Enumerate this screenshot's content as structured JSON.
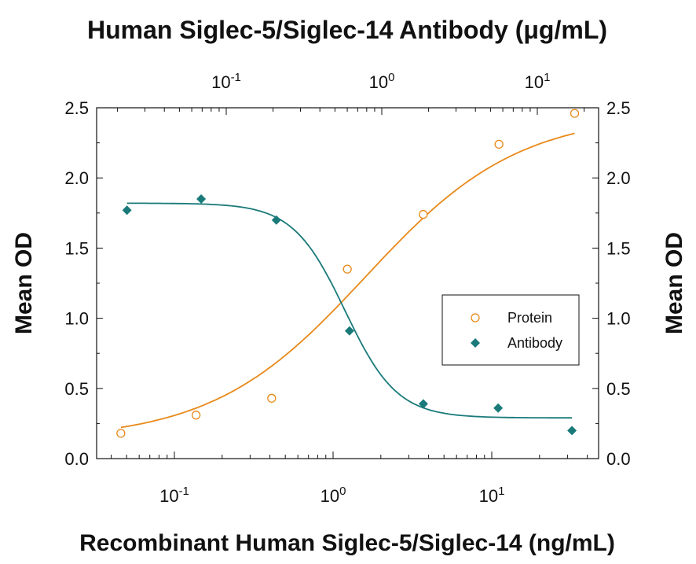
{
  "chart_data": {
    "type": "scatter",
    "title_top": "Human Siglec-5/Siglec-14 Antibody (μg/mL)",
    "xlabel": "Recombinant Human Siglec-5/Siglec-14 (ng/mL)",
    "ylabel_left": "Mean OD",
    "ylabel_right": "Mean OD",
    "x_scale": "log",
    "x_bottom_ticks": [
      {
        "value": 0.1,
        "base": "10",
        "exp": "-1"
      },
      {
        "value": 1,
        "base": "10",
        "exp": "0"
      },
      {
        "value": 10,
        "base": "10",
        "exp": "1"
      }
    ],
    "x_top_ticks": [
      {
        "value": 0.1,
        "base": "10",
        "exp": "-1"
      },
      {
        "value": 1,
        "base": "10",
        "exp": "0"
      },
      {
        "value": 10,
        "base": "10",
        "exp": "1"
      }
    ],
    "y_ticks": [
      "0.0",
      "0.5",
      "1.0",
      "1.5",
      "2.0",
      "2.5"
    ],
    "ylim": [
      0,
      2.5
    ],
    "legend_position": "right-middle",
    "series": [
      {
        "name": "Protein",
        "axis": "bottom",
        "marker": "open-circle",
        "color": "#E8891A",
        "x": [
          0.046,
          0.137,
          0.41,
          1.23,
          3.7,
          11.1,
          33.3
        ],
        "y": [
          0.18,
          0.31,
          0.43,
          1.35,
          1.74,
          2.24,
          2.46
        ]
      },
      {
        "name": "Antibody",
        "axis": "top",
        "marker": "filled-diamond",
        "color": "#1A7A7A",
        "x": [
          0.023,
          0.069,
          0.21,
          0.62,
          1.85,
          5.6,
          16.7
        ],
        "y": [
          1.77,
          1.85,
          1.7,
          0.91,
          0.39,
          0.36,
          0.2
        ]
      }
    ]
  }
}
